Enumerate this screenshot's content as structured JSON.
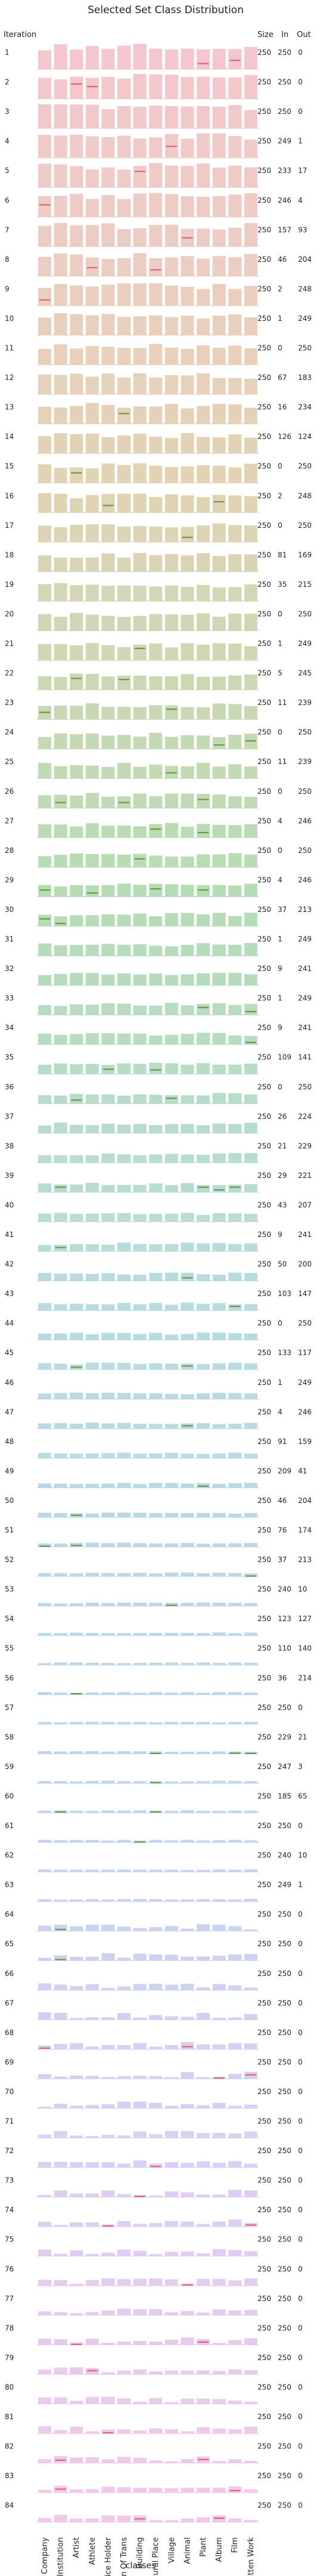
{
  "chart_data": {
    "type": "bar",
    "title": "Selected Set Class Distribution",
    "xlabel": "classes",
    "row_header": "Iteration",
    "column_headers": [
      "Size",
      "In",
      "Out"
    ],
    "categories": [
      "Company",
      "Edu Institution",
      "Artist",
      "Athlete",
      "Office Holder",
      "Mean Of Trans",
      "Building",
      "Natural Place",
      "Village",
      "Animal",
      "Plant",
      "Album",
      "Film",
      "Written Work"
    ],
    "rows": [
      {
        "iteration": "1",
        "size": "250",
        "in": "250",
        "out": "0"
      },
      {
        "iteration": "2",
        "size": "250",
        "in": "250",
        "out": "0"
      },
      {
        "iteration": "3",
        "size": "250",
        "in": "250",
        "out": "0"
      },
      {
        "iteration": "4",
        "size": "250",
        "in": "249",
        "out": "1"
      },
      {
        "iteration": "5",
        "size": "250",
        "in": "233",
        "out": "17"
      },
      {
        "iteration": "6",
        "size": "250",
        "in": "246",
        "out": "4"
      },
      {
        "iteration": "7",
        "size": "250",
        "in": "157",
        "out": "93"
      },
      {
        "iteration": "8",
        "size": "250",
        "in": "46",
        "out": "204"
      },
      {
        "iteration": "9",
        "size": "250",
        "in": "2",
        "out": "248"
      },
      {
        "iteration": "10",
        "size": "250",
        "in": "1",
        "out": "249"
      },
      {
        "iteration": "11",
        "size": "250",
        "in": "0",
        "out": "250"
      },
      {
        "iteration": "12",
        "size": "250",
        "in": "67",
        "out": "183"
      },
      {
        "iteration": "13",
        "size": "250",
        "in": "16",
        "out": "234"
      },
      {
        "iteration": "14",
        "size": "250",
        "in": "126",
        "out": "124"
      },
      {
        "iteration": "15",
        "size": "250",
        "in": "0",
        "out": "250"
      },
      {
        "iteration": "16",
        "size": "250",
        "in": "2",
        "out": "248"
      },
      {
        "iteration": "17",
        "size": "250",
        "in": "0",
        "out": "250"
      },
      {
        "iteration": "18",
        "size": "250",
        "in": "81",
        "out": "169"
      },
      {
        "iteration": "19",
        "size": "250",
        "in": "35",
        "out": "215"
      },
      {
        "iteration": "20",
        "size": "250",
        "in": "0",
        "out": "250"
      },
      {
        "iteration": "21",
        "size": "250",
        "in": "1",
        "out": "249"
      },
      {
        "iteration": "22",
        "size": "250",
        "in": "5",
        "out": "245"
      },
      {
        "iteration": "23",
        "size": "250",
        "in": "11",
        "out": "239"
      },
      {
        "iteration": "24",
        "size": "250",
        "in": "0",
        "out": "250"
      },
      {
        "iteration": "25",
        "size": "250",
        "in": "11",
        "out": "239"
      },
      {
        "iteration": "26",
        "size": "250",
        "in": "0",
        "out": "250"
      },
      {
        "iteration": "27",
        "size": "250",
        "in": "4",
        "out": "246"
      },
      {
        "iteration": "28",
        "size": "250",
        "in": "0",
        "out": "250"
      },
      {
        "iteration": "29",
        "size": "250",
        "in": "4",
        "out": "246"
      },
      {
        "iteration": "30",
        "size": "250",
        "in": "37",
        "out": "213"
      },
      {
        "iteration": "31",
        "size": "250",
        "in": "1",
        "out": "249"
      },
      {
        "iteration": "32",
        "size": "250",
        "in": "9",
        "out": "241"
      },
      {
        "iteration": "33",
        "size": "250",
        "in": "1",
        "out": "249"
      },
      {
        "iteration": "34",
        "size": "250",
        "in": "9",
        "out": "241"
      },
      {
        "iteration": "35",
        "size": "250",
        "in": "109",
        "out": "141"
      },
      {
        "iteration": "36",
        "size": "250",
        "in": "0",
        "out": "250"
      },
      {
        "iteration": "37",
        "size": "250",
        "in": "26",
        "out": "224"
      },
      {
        "iteration": "38",
        "size": "250",
        "in": "21",
        "out": "229"
      },
      {
        "iteration": "39",
        "size": "250",
        "in": "29",
        "out": "221"
      },
      {
        "iteration": "40",
        "size": "250",
        "in": "43",
        "out": "207"
      },
      {
        "iteration": "41",
        "size": "250",
        "in": "9",
        "out": "241"
      },
      {
        "iteration": "42",
        "size": "250",
        "in": "50",
        "out": "200"
      },
      {
        "iteration": "43",
        "size": "250",
        "in": "103",
        "out": "147"
      },
      {
        "iteration": "44",
        "size": "250",
        "in": "0",
        "out": "250"
      },
      {
        "iteration": "45",
        "size": "250",
        "in": "133",
        "out": "117"
      },
      {
        "iteration": "46",
        "size": "250",
        "in": "1",
        "out": "249"
      },
      {
        "iteration": "47",
        "size": "250",
        "in": "4",
        "out": "246"
      },
      {
        "iteration": "48",
        "size": "250",
        "in": "91",
        "out": "159"
      },
      {
        "iteration": "49",
        "size": "250",
        "in": "209",
        "out": "41"
      },
      {
        "iteration": "50",
        "size": "250",
        "in": "46",
        "out": "204"
      },
      {
        "iteration": "51",
        "size": "250",
        "in": "76",
        "out": "174"
      },
      {
        "iteration": "52",
        "size": "250",
        "in": "37",
        "out": "213"
      },
      {
        "iteration": "53",
        "size": "250",
        "in": "240",
        "out": "10"
      },
      {
        "iteration": "54",
        "size": "250",
        "in": "123",
        "out": "127"
      },
      {
        "iteration": "55",
        "size": "250",
        "in": "110",
        "out": "140"
      },
      {
        "iteration": "56",
        "size": "250",
        "in": "36",
        "out": "214"
      },
      {
        "iteration": "57",
        "size": "250",
        "in": "250",
        "out": "0"
      },
      {
        "iteration": "58",
        "size": "250",
        "in": "229",
        "out": "21"
      },
      {
        "iteration": "59",
        "size": "250",
        "in": "247",
        "out": "3"
      },
      {
        "iteration": "60",
        "size": "250",
        "in": "185",
        "out": "65"
      },
      {
        "iteration": "61",
        "size": "250",
        "in": "250",
        "out": "0"
      },
      {
        "iteration": "62",
        "size": "250",
        "in": "240",
        "out": "10"
      },
      {
        "iteration": "63",
        "size": "250",
        "in": "249",
        "out": "1"
      },
      {
        "iteration": "64",
        "size": "250",
        "in": "250",
        "out": "0"
      },
      {
        "iteration": "65",
        "size": "250",
        "in": "250",
        "out": "0"
      },
      {
        "iteration": "66",
        "size": "250",
        "in": "250",
        "out": "0"
      },
      {
        "iteration": "67",
        "size": "250",
        "in": "250",
        "out": "0"
      },
      {
        "iteration": "68",
        "size": "250",
        "in": "250",
        "out": "0"
      },
      {
        "iteration": "69",
        "size": "250",
        "in": "250",
        "out": "0"
      },
      {
        "iteration": "70",
        "size": "250",
        "in": "250",
        "out": "0"
      },
      {
        "iteration": "71",
        "size": "250",
        "in": "250",
        "out": "0"
      },
      {
        "iteration": "72",
        "size": "250",
        "in": "250",
        "out": "0"
      },
      {
        "iteration": "73",
        "size": "250",
        "in": "250",
        "out": "0"
      },
      {
        "iteration": "74",
        "size": "250",
        "in": "250",
        "out": "0"
      },
      {
        "iteration": "75",
        "size": "250",
        "in": "250",
        "out": "0"
      },
      {
        "iteration": "76",
        "size": "250",
        "in": "250",
        "out": "0"
      },
      {
        "iteration": "77",
        "size": "250",
        "in": "250",
        "out": "0"
      },
      {
        "iteration": "78",
        "size": "250",
        "in": "250",
        "out": "0"
      },
      {
        "iteration": "79",
        "size": "250",
        "in": "250",
        "out": "0"
      },
      {
        "iteration": "80",
        "size": "250",
        "in": "250",
        "out": "0"
      },
      {
        "iteration": "81",
        "size": "250",
        "in": "250",
        "out": "0"
      },
      {
        "iteration": "82",
        "size": "250",
        "in": "250",
        "out": "0"
      },
      {
        "iteration": "83",
        "size": "250",
        "in": "250",
        "out": "0"
      },
      {
        "iteration": "84",
        "size": "250",
        "in": "250",
        "out": "0"
      }
    ],
    "colors": {
      "palette_start": "#f4c7cf",
      "palette_mid_1": "#e3d3b4",
      "palette_mid_2": "#b6dcb4",
      "palette_mid_3": "#b8dcde",
      "palette_mid_4": "#bcd6ee",
      "palette_mid_5": "#d8d0f4",
      "palette_end": "#f2c8ea",
      "highlight": "#e0607a",
      "mid_highlight": "#6a9a3a",
      "text": "#222222"
    }
  }
}
